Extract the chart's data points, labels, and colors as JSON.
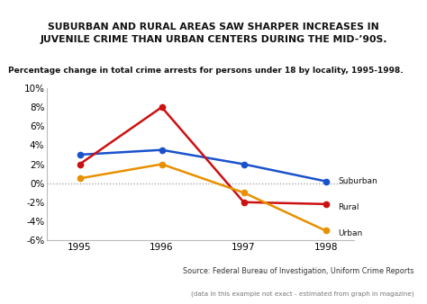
{
  "title": "SUBURBAN AND RURAL AREAS SAW SHARPER INCREASES IN\nJUVENILE CRIME THAN URBAN CENTERS DURING THE MID-’90S.",
  "subtitle": "Percentage change in total crime arrests for persons under 18 by locality, 1995-1998.",
  "source_line1": "Source: Federal Bureau of Investigation, Uniform Crime Reports",
  "source_line2": "(data in this example not exact - estimated from graph in magazine)",
  "years": [
    1995,
    1996,
    1997,
    1998
  ],
  "suburban": [
    3.0,
    3.5,
    2.0,
    0.2
  ],
  "rural": [
    2.0,
    8.0,
    -2.0,
    -2.2
  ],
  "urban": [
    0.5,
    2.0,
    -1.0,
    -5.0
  ],
  "suburban_color": "#1a52cc",
  "rural_color": "#cc1111",
  "urban_color": "#e89000",
  "background_title": "#cccccc",
  "background_fig": "#ffffff",
  "background_plot": "#ffffff",
  "ylim": [
    -6,
    10
  ],
  "yticks": [
    -6,
    -4,
    -2,
    0,
    2,
    4,
    6,
    8,
    10
  ],
  "ytick_labels": [
    "-6%",
    "-4%",
    "-2%",
    "0%",
    "2%",
    "4%",
    "6%",
    "8%",
    "10%"
  ]
}
